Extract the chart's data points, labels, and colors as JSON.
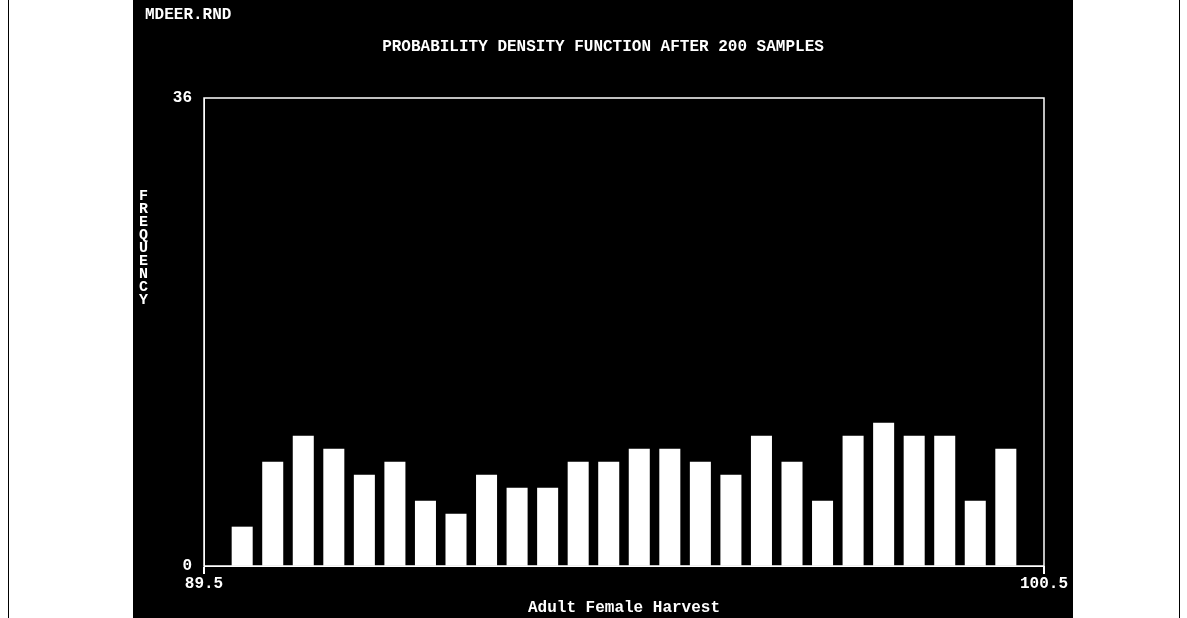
{
  "chart_data": {
    "type": "bar",
    "title": "PROBABILITY DENSITY FUNCTION AFTER 200 SAMPLES",
    "xlabel": "Adult Female Harvest",
    "ylabel": "FREQUENCY",
    "annotations": [
      "MDEER.RND"
    ],
    "x": [
      90.0,
      90.4,
      90.8,
      91.2,
      91.6,
      92.0,
      92.4,
      92.8,
      93.2,
      93.6,
      94.0,
      94.4,
      94.8,
      95.2,
      95.6,
      96.0,
      96.4,
      96.8,
      97.2,
      97.6,
      98.0,
      98.4,
      98.8,
      99.2,
      99.6,
      100.0
    ],
    "values": [
      3,
      8,
      10,
      9,
      7,
      8,
      5,
      4,
      7,
      6,
      6,
      8,
      8,
      9,
      9,
      8,
      7,
      10,
      8,
      5,
      10,
      11,
      10,
      10,
      5,
      9
    ],
    "color": "#ffffff",
    "xlim": [
      89.5,
      100.5
    ],
    "xticks": [
      89.5,
      100.5
    ],
    "ylim": [
      0,
      36
    ],
    "yticks": [
      0,
      36
    ],
    "grid": false,
    "legend": false
  }
}
